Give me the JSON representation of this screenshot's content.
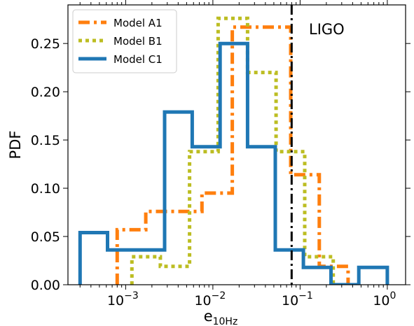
{
  "chart_data": {
    "type": "histogram",
    "xlabel_main": "e",
    "xlabel_sub": "10Hz",
    "ylabel": "PDF",
    "xscale": "log",
    "xlim": [
      0.000218,
      1.62
    ],
    "ylim": [
      0,
      0.29
    ],
    "grid": false,
    "legend_position": "top-left",
    "xticks": [
      {
        "value": 0.001,
        "base": "10",
        "exp": "−3"
      },
      {
        "value": 0.01,
        "base": "10",
        "exp": "−2"
      },
      {
        "value": 0.1,
        "base": "10",
        "exp": "−1"
      },
      {
        "value": 1,
        "base": "10",
        "exp": "0"
      }
    ],
    "yticks": [
      {
        "value": 0.0,
        "label": "0.00"
      },
      {
        "value": 0.05,
        "label": "0.05"
      },
      {
        "value": 0.1,
        "label": "0.10"
      },
      {
        "value": 0.15,
        "label": "0.15"
      },
      {
        "value": 0.2,
        "label": "0.20"
      },
      {
        "value": 0.25,
        "label": "0.25"
      }
    ],
    "vline": {
      "x": 0.08,
      "label": "LIGO",
      "color": "#000000"
    },
    "series": [
      {
        "name": "Model A1",
        "color": "#ff7f0e",
        "style": "dashdot",
        "bin_edges": [
          0.0008,
          0.0017,
          0.0035,
          0.0075,
          0.0167,
          0.036,
          0.078,
          0.166,
          0.355
        ],
        "values": [
          0.057,
          0.076,
          0.076,
          0.095,
          0.267,
          0.267,
          0.114,
          0.019
        ]
      },
      {
        "name": "Model B1",
        "color": "#bcbd22",
        "style": "dotted",
        "bin_edges": [
          0.00118,
          0.0025,
          0.0054,
          0.0115,
          0.025,
          0.053,
          0.113,
          0.24
        ],
        "values": [
          0.029,
          0.019,
          0.138,
          0.276,
          0.22,
          0.138,
          0.029
        ]
      },
      {
        "name": "Model C1",
        "color": "#1f77b4",
        "style": "solid",
        "bin_edges": [
          0.0003,
          0.00062,
          0.0013,
          0.0028,
          0.0058,
          0.0121,
          0.025,
          0.052,
          0.109,
          0.226,
          0.471,
          1.0
        ],
        "values": [
          0.054,
          0.036,
          0.036,
          0.179,
          0.143,
          0.25,
          0.143,
          0.036,
          0.018,
          0.0,
          0.018
        ]
      }
    ]
  }
}
